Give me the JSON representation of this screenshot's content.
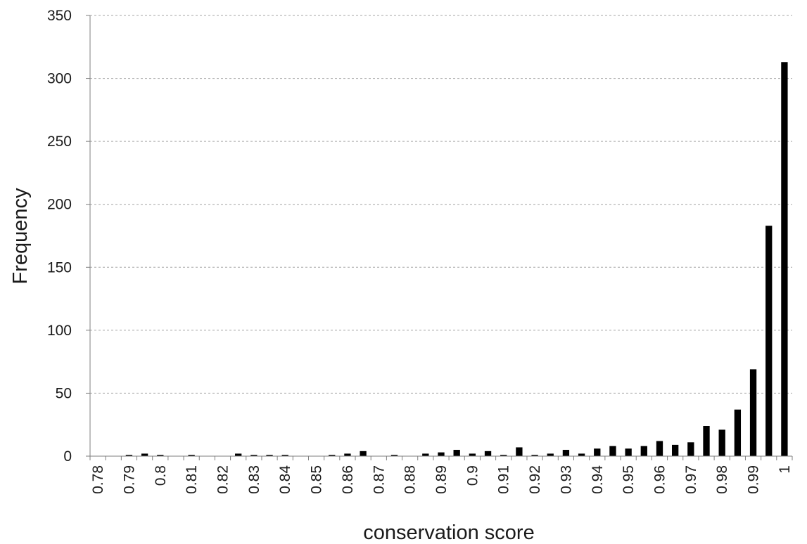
{
  "chart_data": {
    "type": "bar",
    "title": "",
    "xlabel": "conservation score",
    "ylabel": "Frequency",
    "ylim": [
      0,
      350
    ],
    "y_ticks": [
      0,
      50,
      100,
      150,
      200,
      250,
      300,
      350
    ],
    "y_tick_labels": [
      "0",
      "50",
      "100",
      "150",
      "200",
      "250",
      "300",
      "350"
    ],
    "grid": "horizontal dashed",
    "legend": "none",
    "bar_color": "#000000",
    "grid_color": "#a6a6a6",
    "x_tick_labels": [
      "0.78",
      "0.79",
      "0.8",
      "0.81",
      "0.82",
      "0.83",
      "0.84",
      "0.85",
      "0.86",
      "0.87",
      "0.88",
      "0.89",
      "0.9",
      "0.91",
      "0.92",
      "0.93",
      "0.94",
      "0.95",
      "0.96",
      "0.97",
      "0.98",
      "0.99",
      "1"
    ],
    "categories": [
      "0.780",
      "0.785",
      "0.790",
      "0.795",
      "0.800",
      "0.805",
      "0.810",
      "0.815",
      "0.820",
      "0.825",
      "0.830",
      "0.835",
      "0.840",
      "0.845",
      "0.850",
      "0.855",
      "0.860",
      "0.865",
      "0.870",
      "0.875",
      "0.880",
      "0.885",
      "0.890",
      "0.895",
      "0.900",
      "0.905",
      "0.910",
      "0.915",
      "0.920",
      "0.925",
      "0.930",
      "0.935",
      "0.940",
      "0.945",
      "0.950",
      "0.955",
      "0.960",
      "0.965",
      "0.970",
      "0.975",
      "0.980",
      "0.985",
      "0.990",
      "0.995",
      "1.000"
    ],
    "values": [
      0,
      0,
      1,
      2,
      1,
      0,
      1,
      0,
      0,
      2,
      1,
      1,
      1,
      0,
      0,
      1,
      2,
      4,
      0,
      1,
      0,
      2,
      3,
      5,
      2,
      4,
      1,
      7,
      1,
      2,
      5,
      2,
      6,
      8,
      6,
      8,
      12,
      9,
      11,
      24,
      21,
      37,
      69,
      183,
      313
    ]
  }
}
